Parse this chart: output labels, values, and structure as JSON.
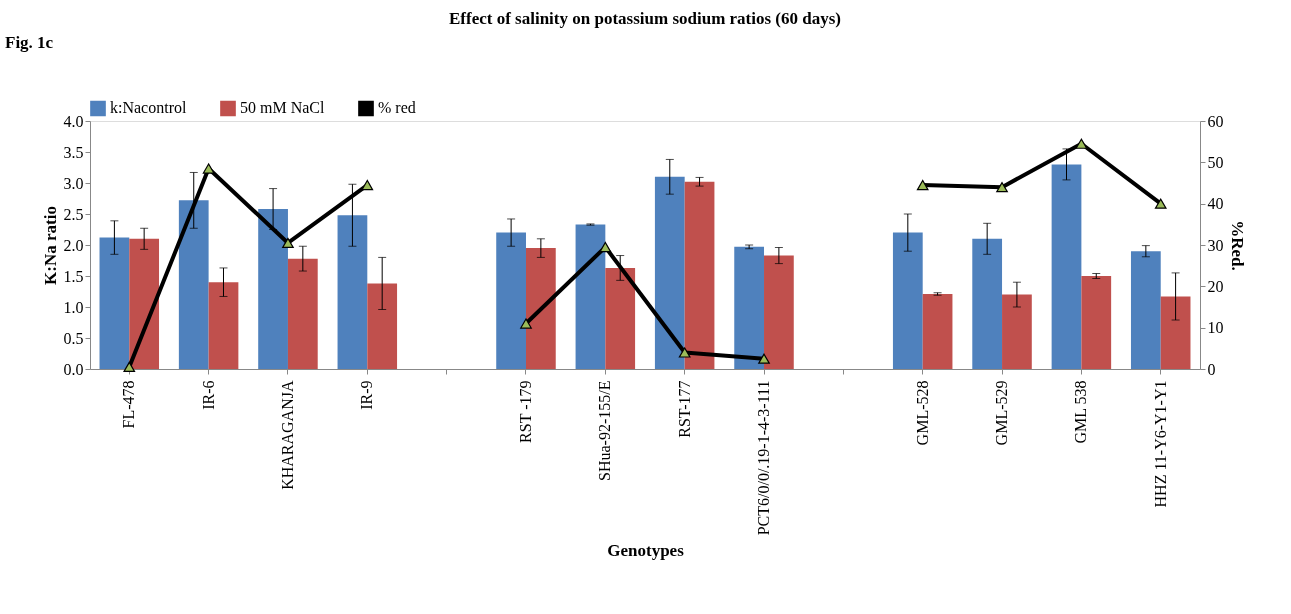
{
  "chart_data": {
    "type": "bar",
    "title": "Effect of salinity on potassium sodium ratios (60 days)",
    "xlabel": "Genotypes",
    "ylabel": "K:Na ratio",
    "y2label": "%Red.",
    "annotations": [
      "Fig. 1c"
    ],
    "categories": [
      "FL-478",
      "IR-6",
      "KHARAGANJA",
      "IR-9",
      null,
      "RST -179",
      "SHua-92-155/E",
      "RST-177",
      "PCT6/0/0/.19-1-4-3-111",
      null,
      "GML-528",
      "GML-529",
      "GML  538",
      "HHZ 11-Y6-Y1-Y1"
    ],
    "series": [
      {
        "name": "k:Nacontrol",
        "color": "#4f81bd",
        "values": [
          2.12,
          2.72,
          2.58,
          2.48,
          null,
          2.2,
          2.33,
          3.1,
          1.97,
          null,
          2.2,
          2.1,
          3.3,
          1.9
        ],
        "errors": [
          0.27,
          0.45,
          0.33,
          0.5,
          null,
          0.22,
          0.01,
          0.28,
          0.03,
          null,
          0.3,
          0.25,
          0.25,
          0.09
        ]
      },
      {
        "name": "50 mM NaCl",
        "color": "#c0504d",
        "values": [
          2.1,
          1.4,
          1.78,
          1.38,
          null,
          1.95,
          1.63,
          3.02,
          1.83,
          null,
          1.21,
          1.2,
          1.5,
          1.17
        ],
        "errors": [
          0.17,
          0.23,
          0.2,
          0.42,
          null,
          0.15,
          0.2,
          0.07,
          0.13,
          null,
          0.02,
          0.2,
          0.04,
          0.38
        ]
      },
      {
        "name": "% red",
        "type": "line",
        "axis": "y2",
        "color": "#000000",
        "values": [
          0.5,
          48.5,
          30.5,
          44.5,
          null,
          11,
          29.5,
          4,
          2.5,
          null,
          44.5,
          44,
          54.5,
          40
        ]
      }
    ],
    "ylim": [
      0,
      4
    ],
    "yticks": [
      {
        "value": 0,
        "label": "0.0"
      },
      {
        "value": 0.5,
        "label": "0.5"
      },
      {
        "value": 1,
        "label": "1.0"
      },
      {
        "value": 1.5,
        "label": "1.5"
      },
      {
        "value": 2,
        "label": "2.0"
      },
      {
        "value": 2.5,
        "label": "2.5"
      },
      {
        "value": 3,
        "label": "3.0"
      },
      {
        "value": 3.5,
        "label": "3.5"
      },
      {
        "value": 4,
        "label": "4.0"
      }
    ],
    "y2lim": [
      0,
      60
    ],
    "y2ticks": [
      0,
      10,
      20,
      30,
      40,
      50,
      60
    ],
    "legend": "top",
    "marker": "triangle",
    "line_style": "solid",
    "grid": false
  }
}
